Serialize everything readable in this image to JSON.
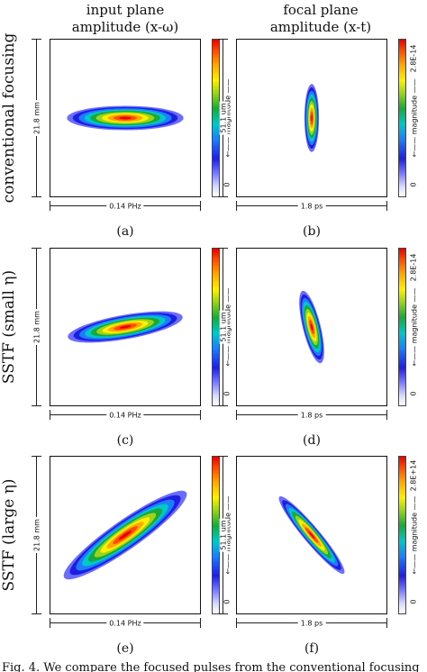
{
  "columns": [
    "input plane\namplitude (x-ω)",
    "focal plane\namplitude (x-t)"
  ],
  "rows": [
    "conventional focusing",
    "SSTF (small η)",
    "SSTF (large η)"
  ],
  "colorbar_label": "magnitude",
  "colorbar_arrow": "←——",
  "colorscale": [
    "#ffffff",
    "#6a6dff",
    "#1e1ee0",
    "#1d7cff",
    "#00c8c8",
    "#19a83a",
    "#9cd41b",
    "#fff000",
    "#ffa600",
    "#ff4a00",
    "#e80000"
  ],
  "panels": [
    {
      "id": "a",
      "caption": "(a)",
      "ylabel": "21.8 mm",
      "xlabel": "0.14 PHz",
      "cb_min": "0",
      "cb_max": "",
      "tilt_deg": 0,
      "spread": 1.0
    },
    {
      "id": "b",
      "caption": "(b)",
      "ylabel": "51.1 um",
      "xlabel": "1.8 ps",
      "cb_min": "0",
      "cb_max": "2.8E-14",
      "tilt_deg": 0,
      "spread": 1.0
    },
    {
      "id": "c",
      "caption": "(c)",
      "ylabel": "21.8 mm",
      "xlabel": "0.14 PHz",
      "cb_min": "0",
      "cb_max": "",
      "tilt_deg": -10,
      "spread": 1.0
    },
    {
      "id": "d",
      "caption": "(d)",
      "ylabel": "51.1 um",
      "xlabel": "1.8 ps",
      "cb_min": "0",
      "cb_max": "2.8E-14",
      "tilt_deg": -14,
      "spread": 1.0
    },
    {
      "id": "e",
      "caption": "(e)",
      "ylabel": "21.8 mm",
      "xlabel": "0.14 PHz",
      "cb_min": "0",
      "cb_max": "",
      "tilt_deg": -35,
      "spread": 1.0
    },
    {
      "id": "f",
      "caption": "(f)",
      "ylabel": "51.1 um",
      "xlabel": "1.8 ps",
      "cb_min": "0",
      "cb_max": "2.8E+14",
      "tilt_deg": -40,
      "spread": 1.0
    }
  ],
  "caption": "Fig. 4.  We compare the focused pulses from the conventional focusing"
}
